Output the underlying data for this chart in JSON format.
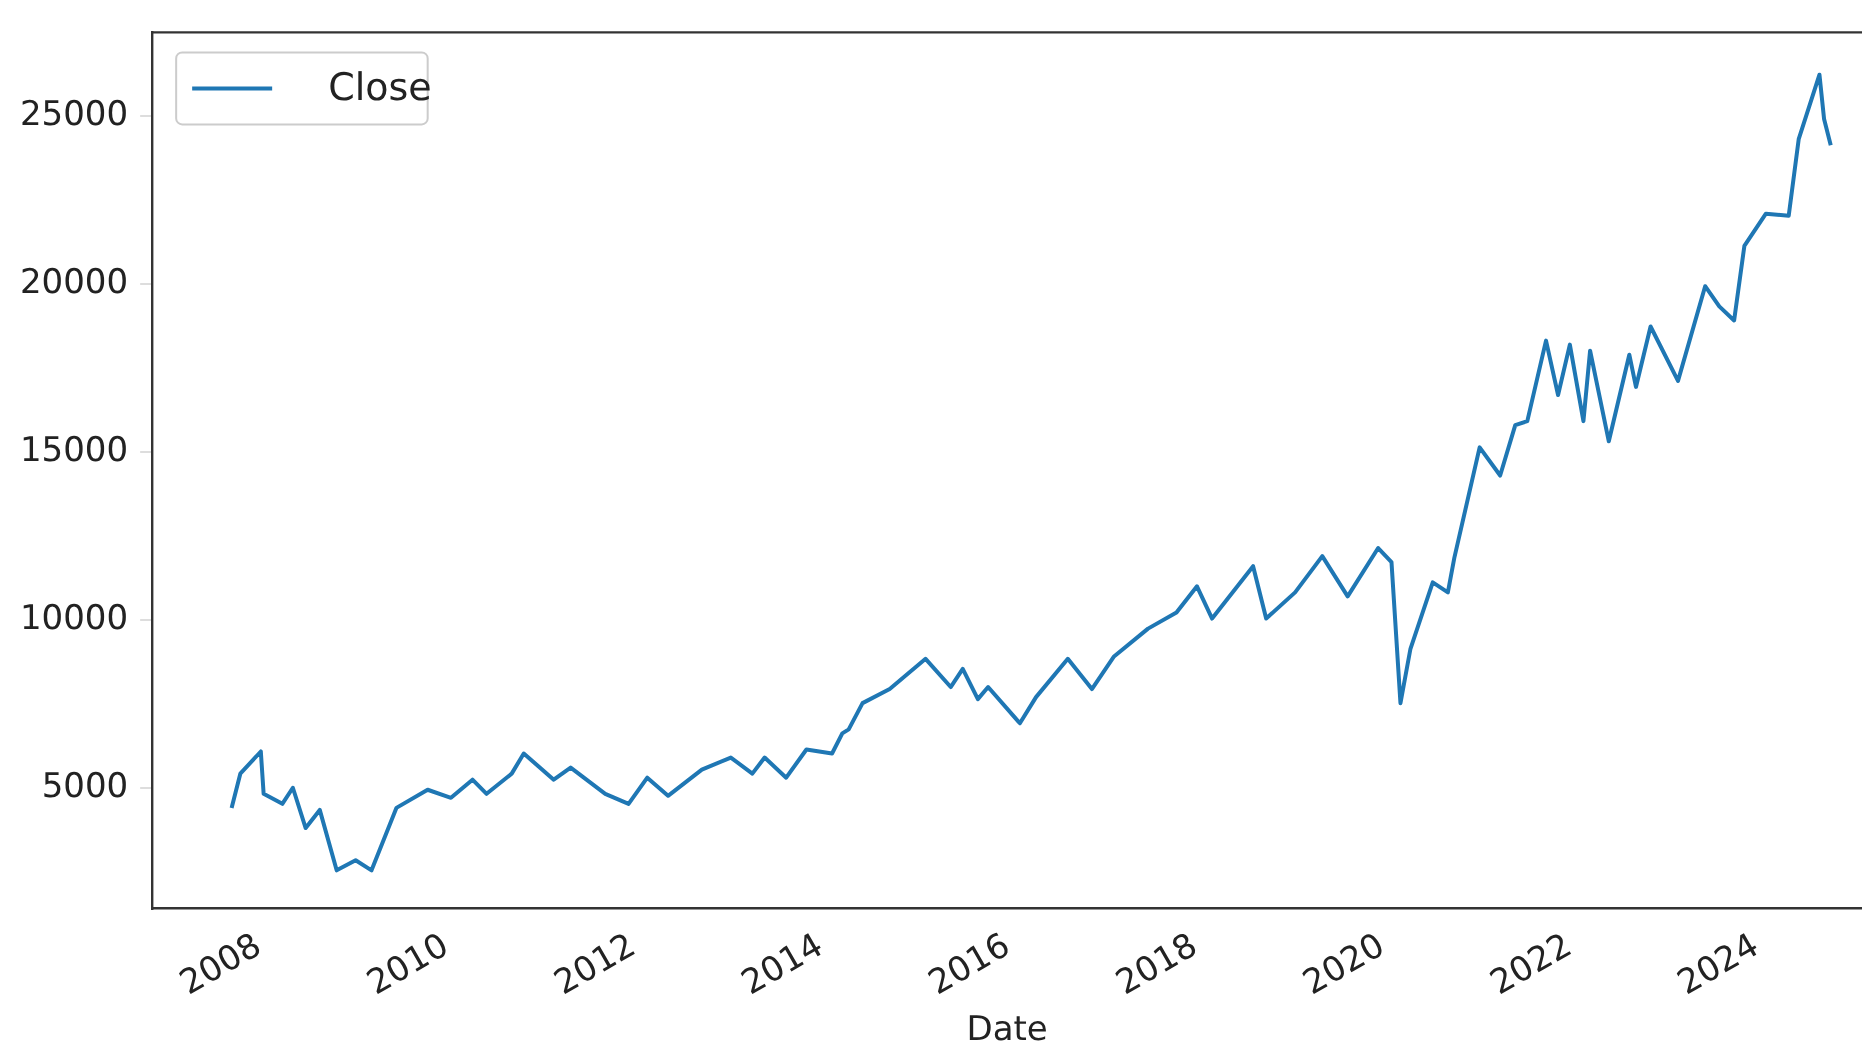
{
  "chart_data": {
    "type": "line",
    "xlabel": "Date",
    "legend": "top left",
    "grid": false,
    "marker": "none",
    "line_style": "solid",
    "xlim": [
      "2006-11-10",
      "2025-02-15"
    ],
    "xticks": [
      "2008",
      "2010",
      "2012",
      "2014",
      "2016",
      "2018",
      "2020",
      "2022",
      "2024"
    ],
    "ylim": [
      1400,
      27500
    ],
    "yticks": [
      5000,
      10000,
      15000,
      20000,
      25000
    ],
    "x": [
      "2007-09-16",
      "2007-10-20",
      "2008-01-08",
      "2008-01-19",
      "2008-04-01",
      "2008-05-12",
      "2008-07-01",
      "2008-08-25",
      "2008-10-30",
      "2009-01-12",
      "2009-03-15",
      "2009-06-20",
      "2009-10-20",
      "2010-01-19",
      "2010-04-13",
      "2010-06-07",
      "2010-09-13",
      "2010-10-30",
      "2011-02-24",
      "2011-05-01",
      "2011-09-13",
      "2011-12-13",
      "2012-02-24",
      "2012-05-15",
      "2012-09-24",
      "2013-01-15",
      "2013-04-09",
      "2013-05-27",
      "2013-08-19",
      "2013-11-06",
      "2014-02-14",
      "2014-03-26",
      "2014-04-20",
      "2014-06-13",
      "2014-09-27",
      "2015-02-14",
      "2015-05-23",
      "2015-07-09",
      "2015-09-06",
      "2015-10-16",
      "2016-02-17",
      "2016-04-20",
      "2016-08-22",
      "2016-11-24",
      "2017-02-17",
      "2017-07-01",
      "2017-10-20",
      "2018-01-08",
      "2018-03-08",
      "2018-08-15",
      "2018-10-05",
      "2019-01-26",
      "2019-05-12",
      "2019-08-19",
      "2019-12-16",
      "2020-02-06",
      "2020-03-12",
      "2020-04-20",
      "2020-07-16",
      "2020-09-13",
      "2020-10-08",
      "2021-01-15",
      "2021-04-05",
      "2021-06-03",
      "2021-07-20",
      "2021-10-01",
      "2021-11-17",
      "2022-01-02",
      "2022-02-24",
      "2022-03-22",
      "2022-06-03",
      "2022-08-22",
      "2022-09-17",
      "2022-11-13",
      "2023-02-28",
      "2023-06-14",
      "2023-08-08",
      "2023-10-05",
      "2023-11-14",
      "2024-02-06",
      "2024-05-05",
      "2024-06-13",
      "2024-09-02",
      "2024-09-20",
      "2024-10-16"
    ],
    "series": [
      {
        "name": "Close",
        "color": "#1f77b4",
        "values": [
          4400,
          5420,
          6080,
          4820,
          4520,
          5000,
          3800,
          4340,
          2540,
          2840,
          2540,
          4400,
          4940,
          4700,
          5240,
          4820,
          5420,
          6020,
          5240,
          5600,
          4820,
          4520,
          5300,
          4760,
          5540,
          5900,
          5420,
          5900,
          5300,
          6140,
          6020,
          6620,
          6740,
          7520,
          7940,
          8840,
          8000,
          8540,
          7640,
          8000,
          6920,
          7700,
          8840,
          7940,
          8900,
          9740,
          10220,
          11000,
          10040,
          11600,
          10040,
          10820,
          11900,
          10700,
          12140,
          11720,
          7520,
          9140,
          11120,
          10820,
          11840,
          15140,
          14300,
          15800,
          15920,
          18320,
          16700,
          18200,
          15920,
          18020,
          15320,
          17900,
          16940,
          18740,
          17120,
          19940,
          19340,
          18920,
          21140,
          22100,
          22040,
          24320,
          26240,
          24920,
          24140
        ]
      }
    ]
  }
}
